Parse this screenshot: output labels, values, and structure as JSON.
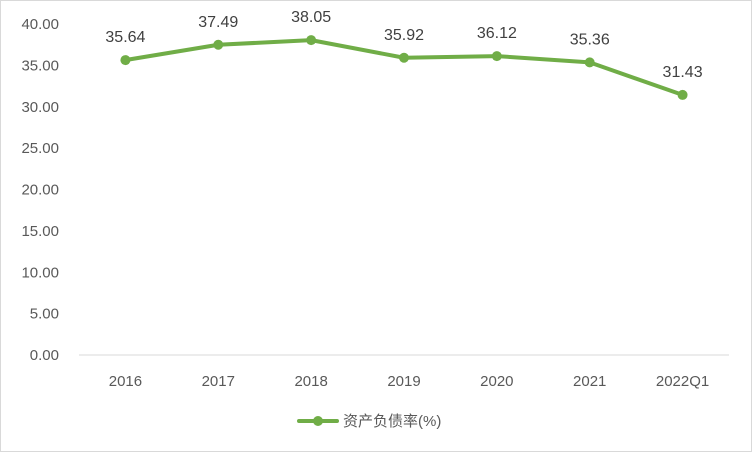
{
  "chart_data": {
    "type": "line",
    "title": "",
    "xlabel": "",
    "ylabel": "",
    "categories": [
      "2016",
      "2017",
      "2018",
      "2019",
      "2020",
      "2021",
      "2022Q1"
    ],
    "series": [
      {
        "name": "资产负债率(%)",
        "values": [
          35.64,
          37.49,
          38.05,
          35.92,
          36.12,
          35.36,
          31.43
        ],
        "data_labels": [
          "35.64",
          "37.49",
          "38.05",
          "35.92",
          "36.12",
          "35.36",
          "31.43"
        ],
        "color": "#70ad47"
      }
    ],
    "ylim": [
      0,
      40
    ],
    "yticks": [
      "0.00",
      "5.00",
      "10.00",
      "15.00",
      "20.00",
      "25.00",
      "30.00",
      "35.00",
      "40.00"
    ],
    "grid": false,
    "legend_position": "bottom"
  }
}
